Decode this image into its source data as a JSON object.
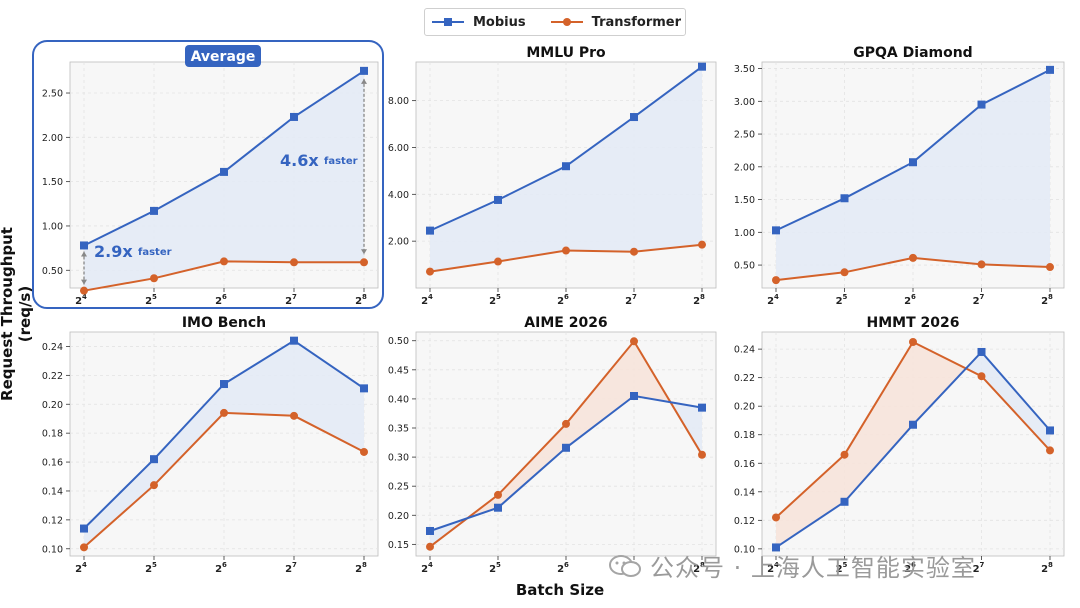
{
  "legend": {
    "mobius_label": "Mobius",
    "transformer_label": "Transformer"
  },
  "colors": {
    "mobius": "#3564C0",
    "transformer": "#D4622A",
    "mobius_fill": "#E3EAF5",
    "transformer_fill": "#F6E3DA",
    "panel_bg": "#F7F7F7",
    "highlight_border": "#3564C0"
  },
  "axis_text": {
    "ylabel": "Request Throughput (req/s)",
    "xlabel": "Batch Size"
  },
  "annotations": {
    "badge": "Average",
    "speedup_small_value": "2.9x",
    "speedup_small_suffix": "faster",
    "speedup_large_value": "4.6x",
    "speedup_large_suffix": "faster"
  },
  "watermark": {
    "text": "公众号 · 上海人工智能实验室"
  },
  "chart_data": [
    {
      "type": "line",
      "title": "Average",
      "x": [
        4,
        5,
        6,
        7,
        8
      ],
      "xtick_base": "2",
      "series": [
        {
          "name": "Mobius",
          "values": [
            0.78,
            1.17,
            1.61,
            2.23,
            2.75
          ]
        },
        {
          "name": "Transformer",
          "values": [
            0.27,
            0.41,
            0.6,
            0.59,
            0.59
          ]
        }
      ],
      "ylim": [
        0.3,
        2.85
      ],
      "yticks": [
        0.5,
        1.0,
        1.5,
        2.0,
        2.5
      ],
      "ytick_labels": [
        "0.50",
        "1.00",
        "1.50",
        "2.00",
        "2.50"
      ],
      "highlight": true
    },
    {
      "type": "line",
      "title": "MMLU Pro",
      "x": [
        4,
        5,
        6,
        7,
        8
      ],
      "xtick_base": "2",
      "series": [
        {
          "name": "Mobius",
          "values": [
            2.45,
            3.76,
            5.2,
            7.3,
            9.45
          ]
        },
        {
          "name": "Transformer",
          "values": [
            0.7,
            1.13,
            1.6,
            1.55,
            1.85
          ]
        }
      ],
      "ylim": [
        0.0,
        9.65
      ],
      "yticks": [
        2,
        4,
        6,
        8
      ],
      "ytick_labels": [
        "2.00",
        "4.00",
        "6.00",
        "8.00"
      ]
    },
    {
      "type": "line",
      "title": "GPQA Diamond",
      "x": [
        4,
        5,
        6,
        7,
        8
      ],
      "xtick_base": "2",
      "series": [
        {
          "name": "Mobius",
          "values": [
            1.03,
            1.52,
            2.07,
            2.95,
            3.48
          ]
        },
        {
          "name": "Transformer",
          "values": [
            0.27,
            0.39,
            0.61,
            0.51,
            0.47
          ]
        }
      ],
      "ylim": [
        0.15,
        3.6
      ],
      "yticks": [
        0.5,
        1.0,
        1.5,
        2.0,
        2.5,
        3.0,
        3.5
      ],
      "ytick_labels": [
        "0.50",
        "1.00",
        "1.50",
        "2.00",
        "2.50",
        "3.00",
        "3.50"
      ]
    },
    {
      "type": "line",
      "title": "IMO Bench",
      "x": [
        4,
        5,
        6,
        7,
        8
      ],
      "xtick_base": "2",
      "series": [
        {
          "name": "Mobius",
          "values": [
            0.114,
            0.162,
            0.214,
            0.244,
            0.211
          ]
        },
        {
          "name": "Transformer",
          "values": [
            0.101,
            0.144,
            0.194,
            0.192,
            0.167
          ]
        }
      ],
      "ylim": [
        0.095,
        0.25
      ],
      "yticks": [
        0.1,
        0.12,
        0.14,
        0.16,
        0.18,
        0.2,
        0.22,
        0.24
      ],
      "ytick_labels": [
        "0.10",
        "0.12",
        "0.14",
        "0.16",
        "0.18",
        "0.20",
        "0.22",
        "0.24"
      ]
    },
    {
      "type": "line",
      "title": "AIME 2026",
      "x": [
        4,
        5,
        6,
        7,
        8
      ],
      "xtick_base": "2",
      "series": [
        {
          "name": "Mobius",
          "values": [
            0.173,
            0.213,
            0.316,
            0.405,
            0.385
          ]
        },
        {
          "name": "Transformer",
          "values": [
            0.146,
            0.235,
            0.357,
            0.499,
            0.304
          ]
        }
      ],
      "ylim": [
        0.13,
        0.515
      ],
      "yticks": [
        0.15,
        0.2,
        0.25,
        0.3,
        0.35,
        0.4,
        0.45,
        0.5
      ],
      "ytick_labels": [
        "0.15",
        "0.20",
        "0.25",
        "0.30",
        "0.35",
        "0.40",
        "0.45",
        "0.50"
      ]
    },
    {
      "type": "line",
      "title": "HMMT 2026",
      "x": [
        4,
        5,
        6,
        7,
        8
      ],
      "xtick_base": "2",
      "series": [
        {
          "name": "Mobius",
          "values": [
            0.101,
            0.133,
            0.187,
            0.238,
            0.183
          ]
        },
        {
          "name": "Transformer",
          "values": [
            0.122,
            0.166,
            0.245,
            0.221,
            0.169
          ]
        }
      ],
      "ylim": [
        0.095,
        0.252
      ],
      "yticks": [
        0.1,
        0.12,
        0.14,
        0.16,
        0.18,
        0.2,
        0.22,
        0.24
      ],
      "ytick_labels": [
        "0.10",
        "0.12",
        "0.14",
        "0.16",
        "0.18",
        "0.20",
        "0.22",
        "0.24"
      ]
    }
  ]
}
